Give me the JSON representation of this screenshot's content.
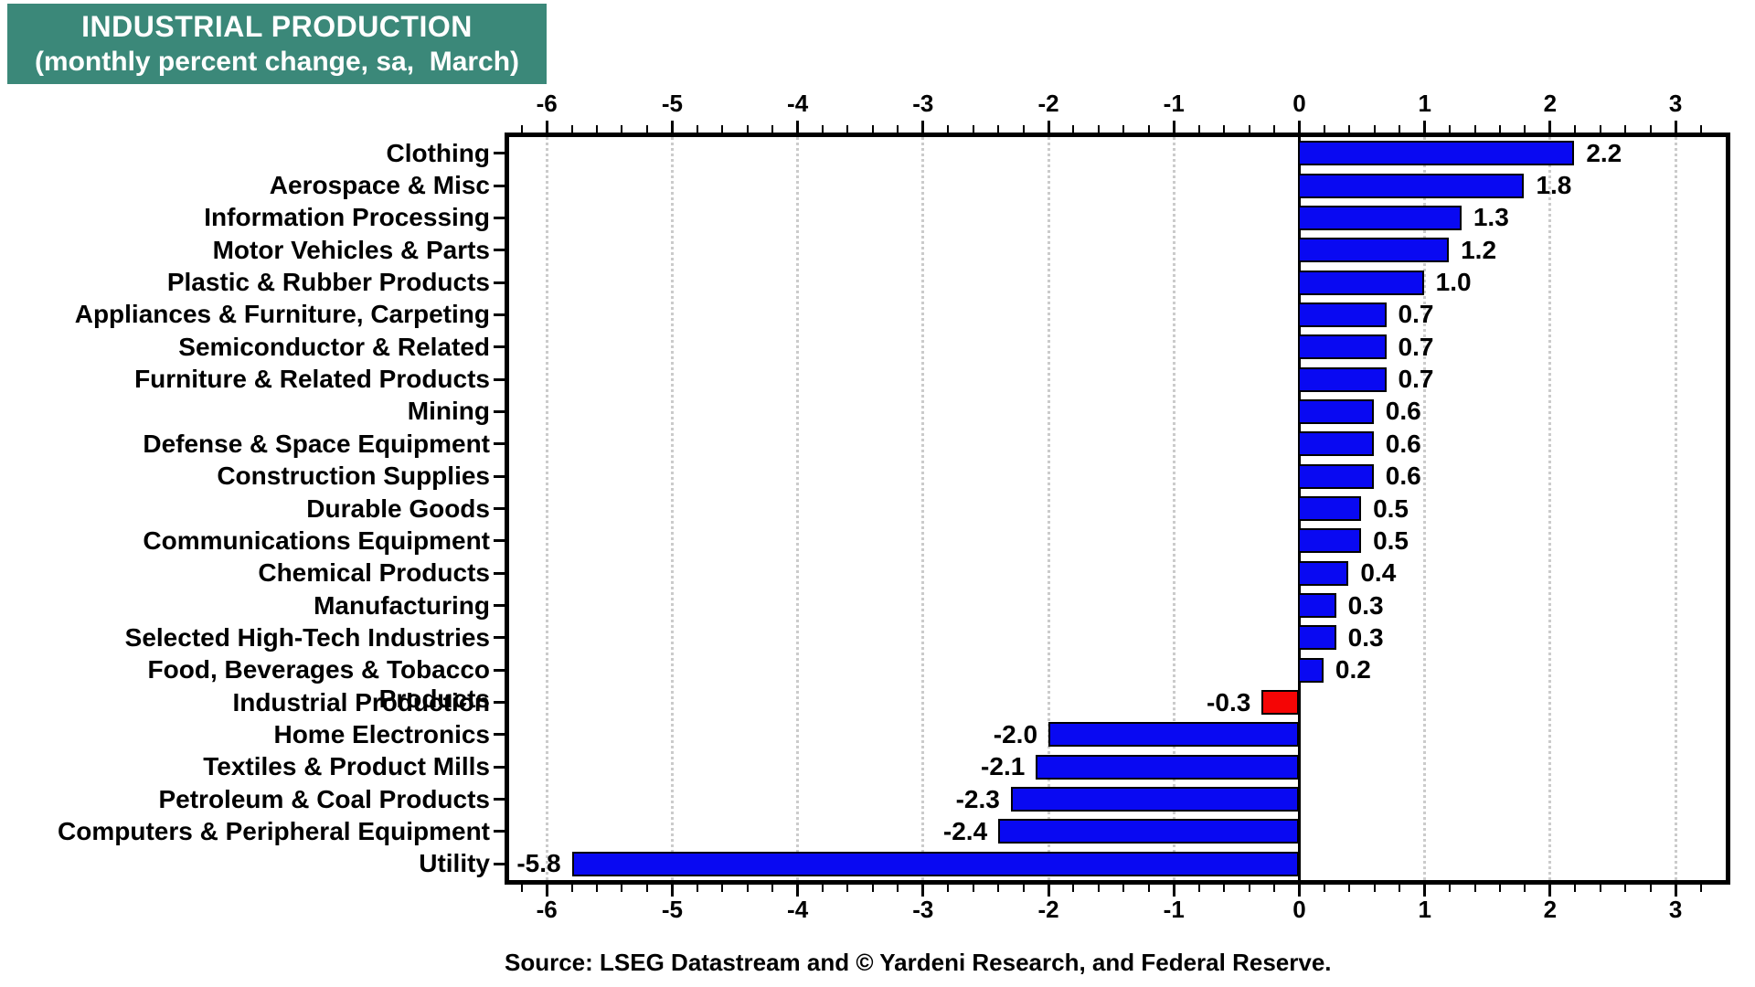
{
  "title": {
    "line1": "INDUSTRIAL PRODUCTION",
    "line2": "(monthly percent change, sa,  March)"
  },
  "source": "Source: LSEG Datastream and © Yardeni Research, and Federal Reserve.",
  "colors": {
    "title_bg": "#3B8879",
    "title_text": "#FFFFFF",
    "bar_blue": "#0909F2",
    "bar_red": "#F50505",
    "grid": "#CBCBCB",
    "zero_line": "#000000",
    "frame": "#000000",
    "text": "#000000"
  },
  "chart_data": {
    "type": "bar",
    "orientation": "horizontal",
    "title": "INDUSTRIAL PRODUCTION (monthly percent change, sa, March)",
    "xlabel": "monthly percent change",
    "ylabel": "",
    "xlim": [
      -6.3,
      3.4
    ],
    "x_major_ticks": [
      -6,
      -5,
      -4,
      -3,
      -2,
      -1,
      0,
      1,
      2,
      3
    ],
    "x_minor_step": 0.2,
    "grid": "dotted vertical gridlines at integer ticks, solid black line at zero",
    "legend": "none",
    "value_labels": "one decimal, outside bar end",
    "highlight_category": "Industrial Production",
    "categories": [
      "Clothing",
      "Aerospace & Misc",
      "Information Processing",
      "Motor Vehicles & Parts",
      "Plastic & Rubber Products",
      "Appliances & Furniture, Carpeting",
      "Semiconductor & Related",
      "Furniture & Related Products",
      "Mining",
      "Defense & Space Equipment",
      "Construction Supplies",
      "Durable Goods",
      "Communications Equipment",
      "Chemical Products",
      "Manufacturing",
      "Selected High-Tech Industries",
      "Food, Beverages & Tobacco Products",
      "Industrial Production",
      "Home Electronics",
      "Textiles & Product Mills",
      "Petroleum & Coal Products",
      "Computers & Peripheral Equipment",
      "Utility"
    ],
    "values": [
      2.2,
      1.8,
      1.3,
      1.2,
      1.0,
      0.7,
      0.7,
      0.7,
      0.6,
      0.6,
      0.6,
      0.5,
      0.5,
      0.4,
      0.3,
      0.3,
      0.2,
      -0.3,
      -2.0,
      -2.1,
      -2.3,
      -2.4,
      -5.8
    ]
  }
}
